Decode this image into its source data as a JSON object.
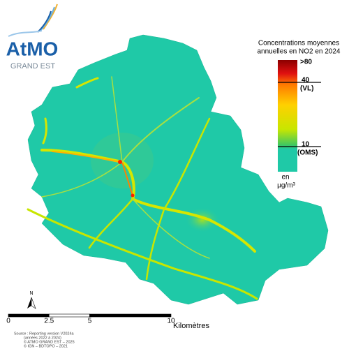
{
  "logo": {
    "name": "AtMO",
    "region": "GRAND EST"
  },
  "legend": {
    "title_lines": [
      "Concentrations moyennes",
      "annuelles en NO2 en 2024"
    ],
    "labels": [
      ">80",
      "40",
      "(VL)",
      "10",
      "(OMS)"
    ],
    "unit_lines": [
      "en",
      "µg/m³"
    ]
  },
  "north": "N",
  "scale_bar": {
    "ticks": [
      0,
      2.5,
      5,
      10
    ],
    "unit": "Kilomètres"
  },
  "source_lines": [
    "Source : Reporting version V2024a",
    "(années 2022 à 2024)",
    "© ATMO GRAND EST – 2025",
    "© IGN – BDTOPO – 2021"
  ]
}
